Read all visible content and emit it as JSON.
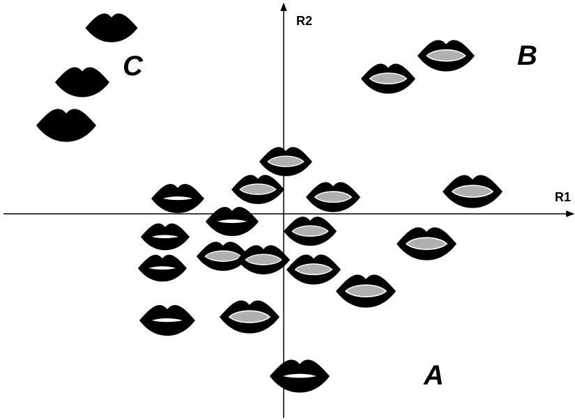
{
  "axes": {
    "x_label": "R1",
    "y_label": "R2"
  },
  "groups": [
    "A",
    "B",
    "C"
  ]
}
